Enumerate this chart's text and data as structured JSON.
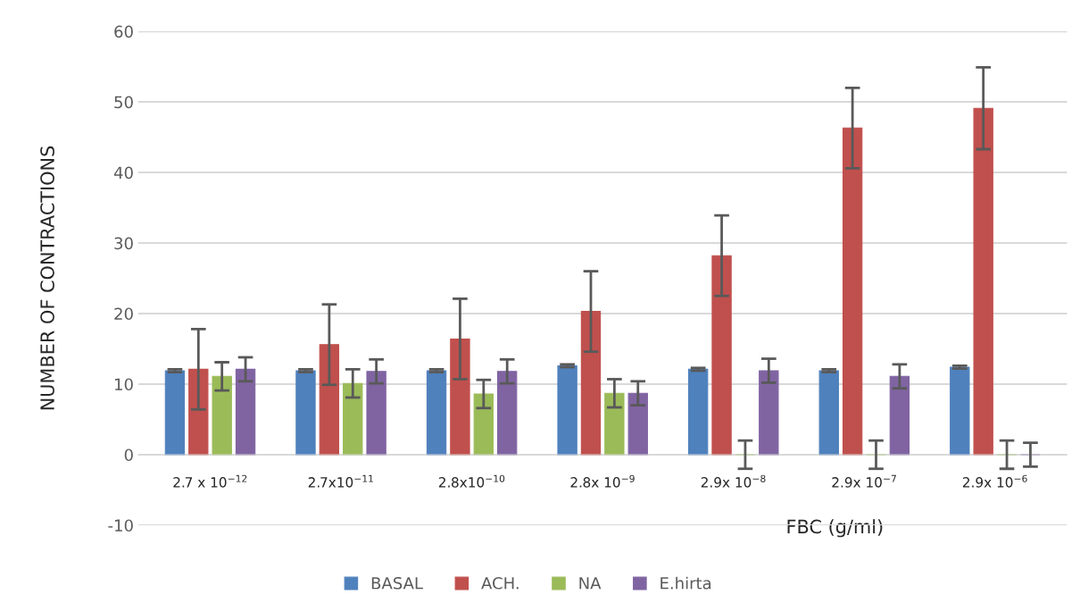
{
  "chart_data": {
    "type": "bar",
    "xlabel": "FBC (g/ml)",
    "ylabel": "NUMBER OF CONTRACTIONS",
    "categories": [
      "2.7 x 10$^{−12}$",
      "2.7x10$^{−11}$",
      "2.8x10$^{−10}$",
      "2.8x 10$^{−9}$",
      "2.9x 10$^{−8}$",
      "2.9x 10$^{−7}$",
      "2.9x 10$^{−6}$"
    ],
    "series": [
      {
        "name": "BASAL",
        "color": "#4f81bd",
        "values": [
          11.9,
          11.9,
          11.9,
          12.6,
          12.1,
          11.9,
          12.4
        ],
        "errors": [
          0.2,
          0.2,
          0.2,
          0.2,
          0.2,
          0.2,
          0.2
        ]
      },
      {
        "name": "ACH.",
        "color": "#c0504d",
        "values": [
          12.1,
          15.6,
          16.4,
          20.3,
          28.2,
          46.3,
          49.1
        ],
        "errors": [
          5.7,
          5.7,
          5.7,
          5.7,
          5.7,
          5.7,
          5.8
        ]
      },
      {
        "name": "NA",
        "color": "#9bbb59",
        "values": [
          11.1,
          10.1,
          8.6,
          8.7,
          0,
          0,
          0
        ],
        "errors": [
          2,
          2,
          2,
          2,
          2,
          2,
          2
        ]
      },
      {
        "name": "E.hirta",
        "color": "#8064a2",
        "values": [
          12.1,
          11.8,
          11.8,
          8.7,
          11.9,
          11.1,
          0
        ],
        "errors": [
          1.7,
          1.7,
          1.7,
          1.7,
          1.7,
          1.7,
          1.7
        ]
      }
    ],
    "ylim": [
      -10,
      60
    ],
    "yticks": [
      -10,
      0,
      10,
      20,
      30,
      40,
      50,
      60
    ],
    "grid": "y",
    "legend": "bottom"
  }
}
